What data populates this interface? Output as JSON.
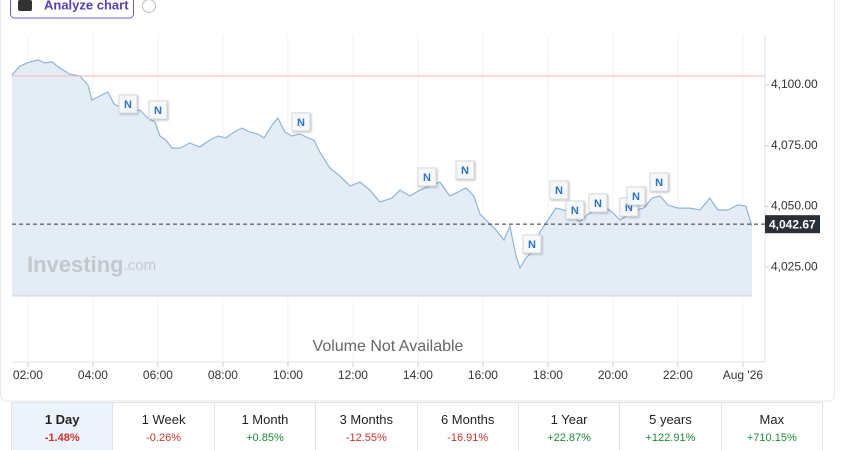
{
  "toolbar": {
    "analyze": "Analyze chart"
  },
  "chart_data": {
    "type": "area",
    "watermark": [
      "Investing",
      ".com"
    ],
    "volume_note": "Volume Not Available",
    "xlim": [
      1.51,
      24.68
    ],
    "xticks": [
      {
        "value": 2,
        "label": "02:00"
      },
      {
        "value": 4,
        "label": "04:00"
      },
      {
        "value": 6,
        "label": "06:00"
      },
      {
        "value": 8,
        "label": "08:00"
      },
      {
        "value": 10,
        "label": "10:00"
      },
      {
        "value": 12,
        "label": "12:00"
      },
      {
        "value": 14,
        "label": "14:00"
      },
      {
        "value": 16,
        "label": "16:00"
      },
      {
        "value": 18,
        "label": "18:00"
      },
      {
        "value": 20,
        "label": "20:00"
      },
      {
        "value": 22,
        "label": "22:00"
      },
      {
        "value": 24,
        "label": "Aug '26"
      }
    ],
    "ylim": [
      3985.9,
      4120.6
    ],
    "yticks": [
      {
        "value": 4025,
        "label": "4,025.00"
      },
      {
        "value": 4050,
        "label": "4,050.00"
      },
      {
        "value": 4075,
        "label": "4,075.00"
      },
      {
        "value": 4100,
        "label": "4,100.00"
      }
    ],
    "grid": true,
    "reference_line": 4103.7,
    "reference_color": "#f2b8b8",
    "current_value": {
      "value": 4042.67,
      "label": "4,042.67"
    },
    "x": [
      1.51,
      1.75,
      2.06,
      2.31,
      2.52,
      2.74,
      2.98,
      3.29,
      3.6,
      3.85,
      3.97,
      4.22,
      4.46,
      4.65,
      4.89,
      5.14,
      5.45,
      5.69,
      5.91,
      6.06,
      6.25,
      6.43,
      6.68,
      6.98,
      7.29,
      7.6,
      7.85,
      8.09,
      8.34,
      8.58,
      8.83,
      9.08,
      9.26,
      9.51,
      9.69,
      9.91,
      10.12,
      10.37,
      10.62,
      10.8,
      10.98,
      11.29,
      11.6,
      11.91,
      12.22,
      12.52,
      12.83,
      13.2,
      13.45,
      13.75,
      14.06,
      14.37,
      14.68,
      14.98,
      15.23,
      15.48,
      15.72,
      15.91,
      16.15,
      16.4,
      16.65,
      16.83,
      17.02,
      17.14,
      17.32,
      17.57,
      17.75,
      18.0,
      18.25,
      18.49,
      18.74,
      18.98,
      19.23,
      19.48,
      19.72,
      19.97,
      20.22,
      20.46,
      20.71,
      20.95,
      21.2,
      21.45,
      21.69,
      22.0,
      22.37,
      22.68,
      22.98,
      23.23,
      23.54,
      23.85,
      24.09,
      24.28
    ],
    "series": [
      {
        "color": "#8fb4d9",
        "fill": "#e4edf6",
        "values": [
          4104.1,
          4107.8,
          4109.5,
          4110.3,
          4109.1,
          4109.5,
          4107.0,
          4104.5,
          4103.7,
          4100.0,
          4093.8,
          4095.5,
          4097.1,
          4092.2,
          4090.5,
          4088.9,
          4089.7,
          4086.4,
          4084.8,
          4079.0,
          4077.3,
          4074.0,
          4074.0,
          4076.1,
          4074.5,
          4077.3,
          4079.0,
          4078.2,
          4080.6,
          4082.3,
          4080.6,
          4079.8,
          4078.2,
          4083.5,
          4086.4,
          4080.6,
          4079.0,
          4079.8,
          4078.2,
          4077.3,
          4072.4,
          4065.8,
          4062.5,
          4058.4,
          4060.0,
          4056.7,
          4051.8,
          4053.4,
          4056.7,
          4054.3,
          4056.7,
          4058.4,
          4060.0,
          4054.3,
          4055.9,
          4057.6,
          4054.3,
          4046.8,
          4043.6,
          4040.3,
          4036.1,
          4041.9,
          4029.5,
          4024.6,
          4028.7,
          4032.0,
          4039.4,
          4044.4,
          4049.3,
          4048.5,
          4046.0,
          4043.6,
          4046.8,
          4048.5,
          4050.1,
          4047.7,
          4044.4,
          4046.4,
          4048.5,
          4049.3,
          4053.4,
          4054.3,
          4050.6,
          4049.3,
          4049.3,
          4048.5,
          4053.4,
          4048.5,
          4048.5,
          4050.6,
          4050.1,
          4041.9
        ]
      }
    ],
    "news_markers": [
      {
        "x": 5.08,
        "y": 4092.2,
        "label": "N"
      },
      {
        "x": 6.0,
        "y": 4089.7,
        "label": "N"
      },
      {
        "x": 10.4,
        "y": 4084.8,
        "label": "N"
      },
      {
        "x": 14.28,
        "y": 4062.1,
        "label": "N"
      },
      {
        "x": 15.45,
        "y": 4065.0,
        "label": "N"
      },
      {
        "x": 17.51,
        "y": 4034.5,
        "label": "N"
      },
      {
        "x": 18.34,
        "y": 4056.7,
        "label": "N"
      },
      {
        "x": 18.83,
        "y": 4048.5,
        "label": "N"
      },
      {
        "x": 19.54,
        "y": 4051.4,
        "label": "N"
      },
      {
        "x": 20.49,
        "y": 4049.7,
        "label": "N"
      },
      {
        "x": 20.71,
        "y": 4054.3,
        "label": "N"
      },
      {
        "x": 21.42,
        "y": 4060.0,
        "label": "N"
      }
    ]
  },
  "periods": [
    {
      "label": "1 Day",
      "change": "-1.48%",
      "color": "#d0312d",
      "selected": true
    },
    {
      "label": "1 Week",
      "change": "-0.26%",
      "color": "#d0312d"
    },
    {
      "label": "1 Month",
      "change": "+0.85%",
      "color": "#1e8a3a"
    },
    {
      "label": "3 Months",
      "change": "-12.55%",
      "color": "#d0312d"
    },
    {
      "label": "6 Months",
      "change": "-16.91%",
      "color": "#d0312d"
    },
    {
      "label": "1 Year",
      "change": "+22.87%",
      "color": "#1e8a3a"
    },
    {
      "label": "5 years",
      "change": "+122.91%",
      "color": "#1e8a3a"
    },
    {
      "label": "Max",
      "change": "+710.15%",
      "color": "#1e8a3a"
    }
  ]
}
